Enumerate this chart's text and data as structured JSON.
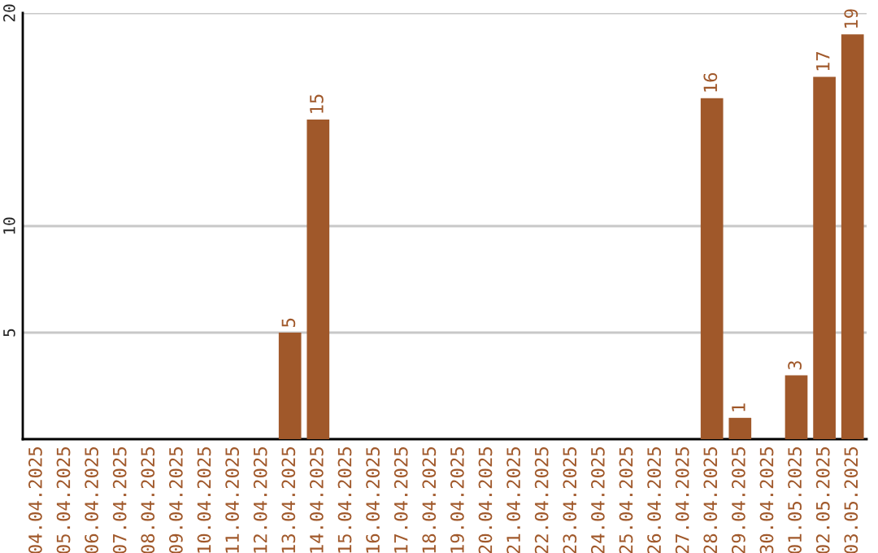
{
  "chart_data": {
    "type": "bar",
    "categories": [
      "04.04.2025",
      "05.04.2025",
      "06.04.2025",
      "07.04.2025",
      "08.04.2025",
      "09.04.2025",
      "10.04.2025",
      "11.04.2025",
      "12.04.2025",
      "13.04.2025",
      "14.04.2025",
      "15.04.2025",
      "16.04.2025",
      "17.04.2025",
      "18.04.2025",
      "19.04.2025",
      "20.04.2025",
      "21.04.2025",
      "22.04.2025",
      "23.04.2025",
      "24.04.2025",
      "25.04.2025",
      "26.04.2025",
      "27.04.2025",
      "28.04.2025",
      "29.04.2025",
      "30.04.2025",
      "01.05.2025",
      "02.05.2025",
      "03.05.2025"
    ],
    "values": [
      0,
      0,
      0,
      0,
      0,
      0,
      0,
      0,
      0,
      5,
      15,
      0,
      0,
      0,
      0,
      0,
      0,
      0,
      0,
      0,
      0,
      0,
      0,
      0,
      16,
      1,
      0,
      3,
      17,
      19
    ],
    "value_labels": [
      null,
      null,
      null,
      null,
      null,
      null,
      null,
      null,
      null,
      "5",
      "15",
      null,
      null,
      null,
      null,
      null,
      null,
      null,
      null,
      null,
      null,
      null,
      null,
      null,
      "16",
      "1",
      null,
      "3",
      "17",
      "19"
    ],
    "color": "#a0582a",
    "ylim": [
      0,
      20
    ],
    "yticks": [
      5,
      10,
      20
    ],
    "grid": "y",
    "legend": false
  }
}
